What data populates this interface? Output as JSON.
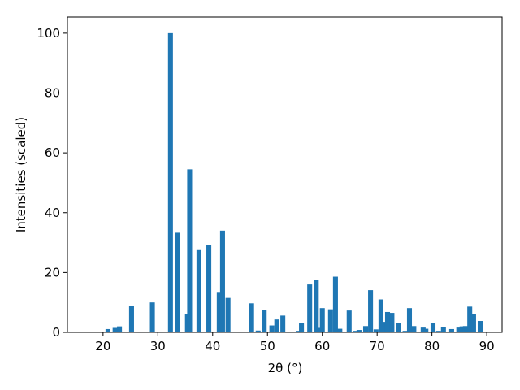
{
  "chart_data": {
    "type": "bar",
    "xlabel": "2θ (°)",
    "ylabel": "Intensities (scaled)",
    "color": "#1f77b4",
    "bar_width": 0.9,
    "x": [
      20.9,
      22.2,
      23.0,
      25.2,
      29.0,
      32.3,
      33.6,
      35.4,
      35.8,
      37.5,
      39.3,
      41.2,
      41.8,
      42.8,
      47.1,
      48.3,
      49.4,
      50.8,
      51.7,
      52.8,
      55.6,
      56.2,
      57.7,
      58.9,
      59.5,
      60.0,
      61.5,
      62.4,
      63.2,
      64.9,
      66.0,
      66.7,
      67.9,
      68.8,
      69.8,
      70.7,
      71.5,
      71.9,
      72.7,
      73.9,
      75.1,
      75.9,
      76.7,
      78.4,
      78.9,
      80.2,
      81.2,
      82.1,
      83.6,
      84.9,
      85.5,
      86.1,
      86.9,
      87.6,
      88.8
    ],
    "values": [
      1.1,
      1.5,
      2,
      8.7,
      10,
      100,
      33.3,
      6,
      54.5,
      27.5,
      29.2,
      13.5,
      34,
      11.5,
      9.7,
      0.6,
      7.6,
      2.3,
      4.3,
      5.6,
      0.5,
      3.2,
      16,
      17.6,
      1.5,
      8.1,
      7.7,
      18.6,
      1.2,
      7.3,
      0.5,
      0.8,
      2.1,
      14.1,
      1,
      11,
      3.5,
      6.8,
      6.5,
      3,
      0.5,
      8.1,
      2.1,
      1.6,
      1.2,
      3.2,
      0.5,
      1.8,
      1.1,
      1.6,
      2,
      2.1,
      8.6,
      6,
      3.8
    ],
    "xlim": [
      13.5,
      92.8
    ],
    "xticks": [
      20,
      30,
      40,
      50,
      60,
      70,
      80,
      90
    ],
    "ylim": [
      0,
      105.4
    ],
    "yticks": [
      0,
      20,
      40,
      60,
      80,
      100
    ]
  }
}
